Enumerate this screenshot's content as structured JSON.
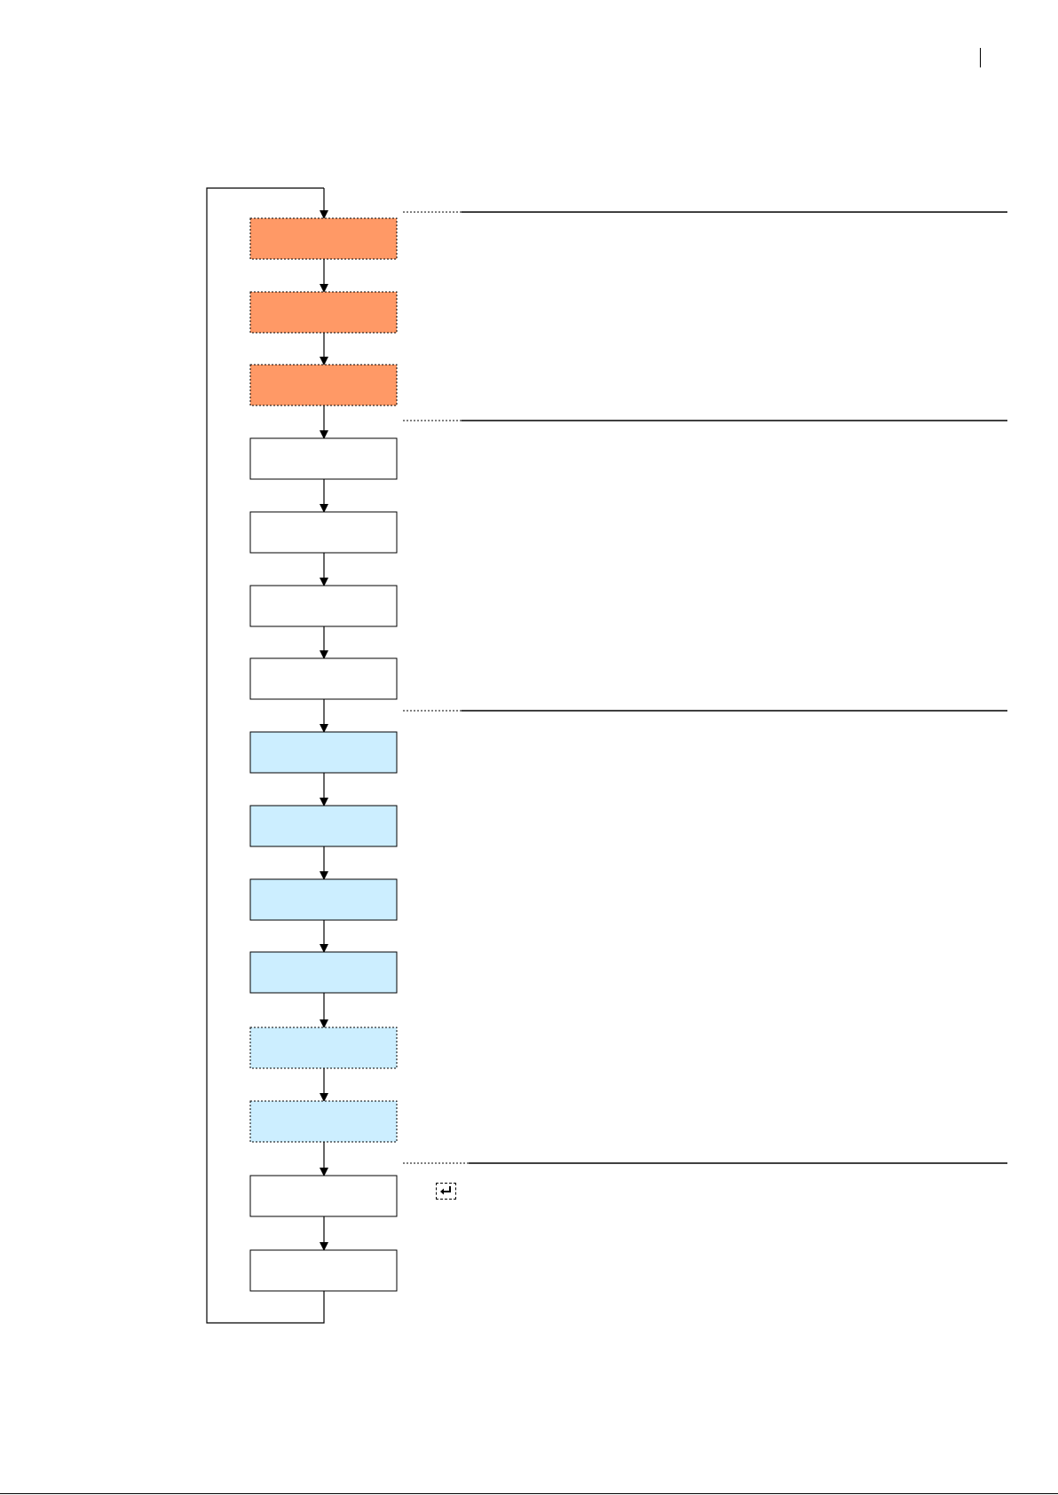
{
  "diagram": {
    "steps": [
      {
        "style": "orange"
      },
      {
        "style": "orange"
      },
      {
        "style": "orange"
      },
      {
        "style": "plain"
      },
      {
        "style": "plain"
      },
      {
        "style": "plain"
      },
      {
        "style": "plain"
      },
      {
        "style": "blue"
      },
      {
        "style": "blue"
      },
      {
        "style": "blue"
      },
      {
        "style": "blue"
      },
      {
        "style": "blue-dotted"
      },
      {
        "style": "blue-dotted"
      },
      {
        "style": "plain"
      },
      {
        "style": "plain"
      }
    ],
    "colors": {
      "orange": "#ff9966",
      "blue": "#cceeff",
      "plain": "#ffffff",
      "stroke": "#000000"
    },
    "icons": [
      "return-key-icon"
    ]
  }
}
